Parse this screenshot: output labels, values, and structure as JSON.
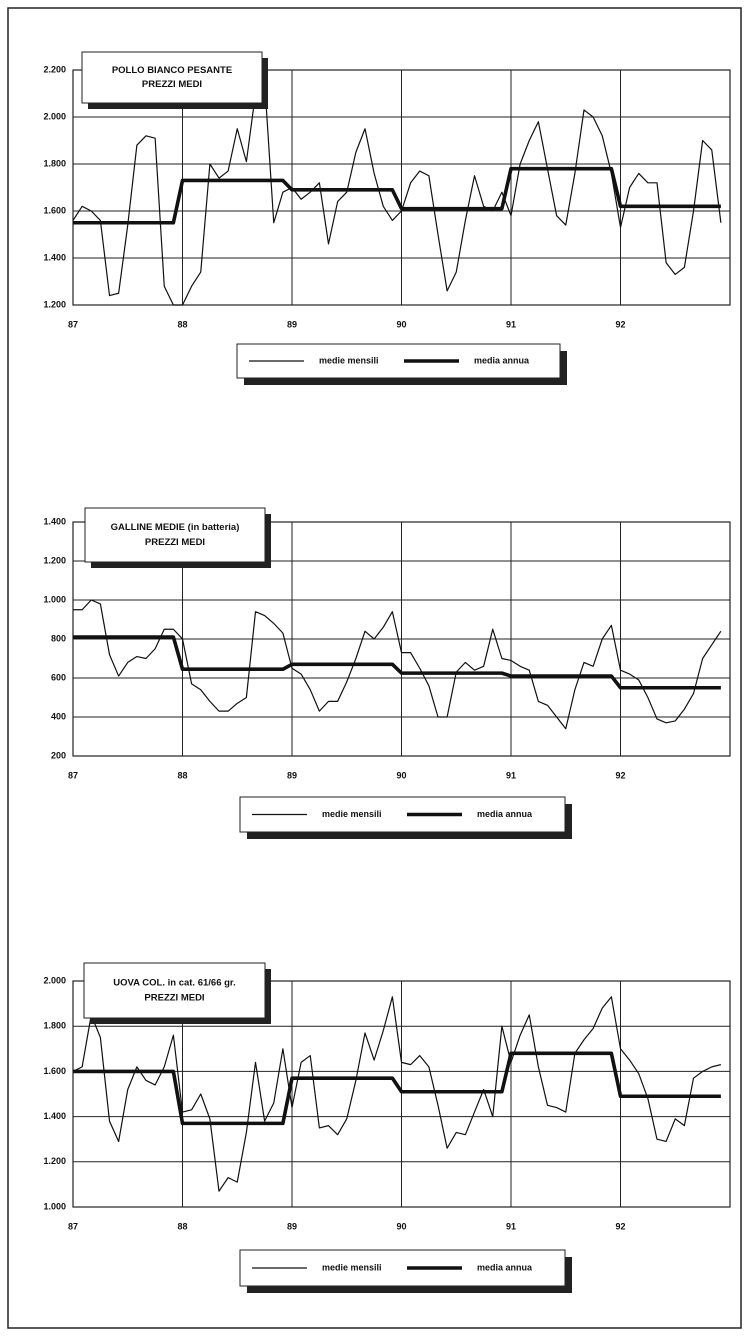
{
  "chart_data": [
    {
      "type": "line",
      "title": "POLLO BIANCO PESANTE",
      "subtitle": "PREZZI MEDI",
      "categories": [
        "87",
        null,
        null,
        null,
        null,
        null,
        null,
        null,
        null,
        null,
        null,
        null,
        "88",
        null,
        null,
        null,
        null,
        null,
        null,
        null,
        null,
        null,
        null,
        null,
        "89",
        null,
        null,
        null,
        null,
        null,
        null,
        null,
        null,
        null,
        null,
        null,
        "90",
        null,
        null,
        null,
        null,
        null,
        null,
        null,
        null,
        null,
        null,
        null,
        "91",
        null,
        null,
        null,
        null,
        null,
        null,
        null,
        null,
        null,
        null,
        null,
        "92",
        null,
        null,
        null,
        null,
        null,
        null,
        null,
        null,
        null,
        null,
        null
      ],
      "series": [
        {
          "name": "medie mensili",
          "color": "#111111",
          "values": [
            1560,
            1620,
            1600,
            1560,
            1240,
            1250,
            1540,
            1880,
            1920,
            1910,
            1280,
            1200,
            1200,
            1280,
            1340,
            1800,
            1740,
            1770,
            1950,
            1810,
            2100,
            2150,
            1550,
            1680,
            1700,
            1650,
            1680,
            1720,
            1460,
            1640,
            1680,
            1850,
            1950,
            1760,
            1620,
            1560,
            1600,
            1720,
            1770,
            1750,
            1500,
            1260,
            1340,
            1560,
            1750,
            1620,
            1600,
            1680,
            1580,
            1800,
            1900,
            1980,
            1780,
            1580,
            1540,
            1760,
            2030,
            2000,
            1920,
            1760,
            1530,
            1700,
            1760,
            1720,
            1720,
            1380,
            1330,
            1360,
            1600,
            1900,
            1860,
            1550
          ]
        },
        {
          "name": "media annua",
          "color": "#111111",
          "values": [
            1550,
            1550,
            1550,
            1550,
            1550,
            1550,
            1550,
            1550,
            1550,
            1550,
            1550,
            1550,
            1730,
            1730,
            1730,
            1730,
            1730,
            1730,
            1730,
            1730,
            1730,
            1730,
            1730,
            1730,
            1690,
            1690,
            1690,
            1690,
            1690,
            1690,
            1690,
            1690,
            1690,
            1690,
            1690,
            1690,
            1610,
            1610,
            1610,
            1610,
            1610,
            1610,
            1610,
            1610,
            1610,
            1610,
            1610,
            1610,
            1780,
            1780,
            1780,
            1780,
            1780,
            1780,
            1780,
            1780,
            1780,
            1780,
            1780,
            1780,
            1620,
            1620,
            1620,
            1620,
            1620,
            1620,
            1620,
            1620,
            1620,
            1620,
            1620,
            1620
          ]
        }
      ],
      "ylim": [
        1200,
        2200
      ],
      "yticks": [
        {
          "value": 1200,
          "label": "1.200"
        },
        {
          "value": 1400,
          "label": "1.400"
        },
        {
          "value": 1600,
          "label": "1.600"
        },
        {
          "value": 1800,
          "label": "1.800"
        },
        {
          "value": 2000,
          "label": "2.000"
        },
        {
          "value": 2200,
          "label": "2.200"
        }
      ],
      "grid": true
    },
    {
      "type": "line",
      "title": "GALLINE MEDIE (in batteria)",
      "subtitle": "PREZZI MEDI",
      "categories": [
        "87",
        null,
        null,
        null,
        null,
        null,
        null,
        null,
        null,
        null,
        null,
        null,
        "88",
        null,
        null,
        null,
        null,
        null,
        null,
        null,
        null,
        null,
        null,
        null,
        "89",
        null,
        null,
        null,
        null,
        null,
        null,
        null,
        null,
        null,
        null,
        null,
        "90",
        null,
        null,
        null,
        null,
        null,
        null,
        null,
        null,
        null,
        null,
        null,
        "91",
        null,
        null,
        null,
        null,
        null,
        null,
        null,
        null,
        null,
        null,
        null,
        "92",
        null,
        null,
        null,
        null,
        null,
        null,
        null,
        null,
        null,
        null,
        null
      ],
      "series": [
        {
          "name": "medie mensili",
          "color": "#111111",
          "values": [
            950,
            950,
            1000,
            980,
            720,
            610,
            680,
            710,
            700,
            750,
            850,
            850,
            800,
            570,
            540,
            480,
            430,
            430,
            470,
            500,
            940,
            920,
            880,
            830,
            650,
            620,
            540,
            430,
            480,
            480,
            580,
            700,
            840,
            800,
            860,
            940,
            730,
            730,
            650,
            560,
            400,
            400,
            630,
            680,
            640,
            660,
            850,
            700,
            690,
            660,
            640,
            480,
            460,
            400,
            340,
            540,
            680,
            660,
            800,
            870,
            640,
            620,
            590,
            500,
            390,
            370,
            380,
            440,
            520,
            700,
            770,
            840
          ]
        },
        {
          "name": "media annua",
          "color": "#111111",
          "values": [
            810,
            810,
            810,
            810,
            810,
            810,
            810,
            810,
            810,
            810,
            810,
            810,
            645,
            645,
            645,
            645,
            645,
            645,
            645,
            645,
            645,
            645,
            645,
            645,
            670,
            670,
            670,
            670,
            670,
            670,
            670,
            670,
            670,
            670,
            670,
            670,
            625,
            625,
            625,
            625,
            625,
            625,
            625,
            625,
            625,
            625,
            625,
            625,
            610,
            610,
            610,
            610,
            610,
            610,
            610,
            610,
            610,
            610,
            610,
            610,
            550,
            550,
            550,
            550,
            550,
            550,
            550,
            550,
            550,
            550,
            550,
            550
          ]
        }
      ],
      "ylim": [
        200,
        1400
      ],
      "yticks": [
        200,
        400,
        600,
        800,
        {
          "value": 1000,
          "label": "1.000"
        },
        {
          "value": 1200,
          "label": "1.200"
        },
        {
          "value": 1400,
          "label": "1.400"
        }
      ],
      "grid": true
    },
    {
      "type": "line",
      "title": "UOVA COL. in cat. 61/66 gr.",
      "subtitle": "PREZZI MEDI",
      "categories": [
        "87",
        null,
        null,
        null,
        null,
        null,
        null,
        null,
        null,
        null,
        null,
        null,
        "88",
        null,
        null,
        null,
        null,
        null,
        null,
        null,
        null,
        null,
        null,
        null,
        "89",
        null,
        null,
        null,
        null,
        null,
        null,
        null,
        null,
        null,
        null,
        null,
        "90",
        null,
        null,
        null,
        null,
        null,
        null,
        null,
        null,
        null,
        null,
        null,
        "91",
        null,
        null,
        null,
        null,
        null,
        null,
        null,
        null,
        null,
        null,
        null,
        "92",
        null,
        null,
        null,
        null,
        null,
        null,
        null,
        null,
        null,
        null,
        null
      ],
      "series": [
        {
          "name": "medie mensili",
          "color": "#111111",
          "values": [
            1600,
            1620,
            1850,
            1750,
            1380,
            1290,
            1520,
            1620,
            1560,
            1540,
            1620,
            1760,
            1420,
            1430,
            1500,
            1390,
            1070,
            1130,
            1110,
            1330,
            1640,
            1380,
            1460,
            1700,
            1440,
            1640,
            1670,
            1350,
            1360,
            1320,
            1390,
            1560,
            1770,
            1650,
            1780,
            1930,
            1640,
            1630,
            1670,
            1620,
            1450,
            1260,
            1330,
            1320,
            1420,
            1520,
            1400,
            1800,
            1640,
            1760,
            1850,
            1620,
            1450,
            1440,
            1420,
            1680,
            1740,
            1790,
            1880,
            1930,
            1700,
            1650,
            1590,
            1480,
            1300,
            1290,
            1390,
            1360,
            1570,
            1600,
            1620,
            1630
          ]
        },
        {
          "name": "media annua",
          "color": "#111111",
          "values": [
            1600,
            1600,
            1600,
            1600,
            1600,
            1600,
            1600,
            1600,
            1600,
            1600,
            1600,
            1600,
            1370,
            1370,
            1370,
            1370,
            1370,
            1370,
            1370,
            1370,
            1370,
            1370,
            1370,
            1370,
            1570,
            1570,
            1570,
            1570,
            1570,
            1570,
            1570,
            1570,
            1570,
            1570,
            1570,
            1570,
            1510,
            1510,
            1510,
            1510,
            1510,
            1510,
            1510,
            1510,
            1510,
            1510,
            1510,
            1510,
            1680,
            1680,
            1680,
            1680,
            1680,
            1680,
            1680,
            1680,
            1680,
            1680,
            1680,
            1680,
            1490,
            1490,
            1490,
            1490,
            1490,
            1490,
            1490,
            1490,
            1490,
            1490,
            1490,
            1490
          ]
        }
      ],
      "ylim": [
        1000,
        2000
      ],
      "yticks": [
        {
          "value": 1000,
          "label": "1.000"
        },
        {
          "value": 1200,
          "label": "1.200"
        },
        {
          "value": 1400,
          "label": "1.400"
        },
        {
          "value": 1600,
          "label": "1.600"
        },
        {
          "value": 1800,
          "label": "1.800"
        },
        {
          "value": 2000,
          "label": "2.000"
        }
      ],
      "grid": true
    }
  ]
}
